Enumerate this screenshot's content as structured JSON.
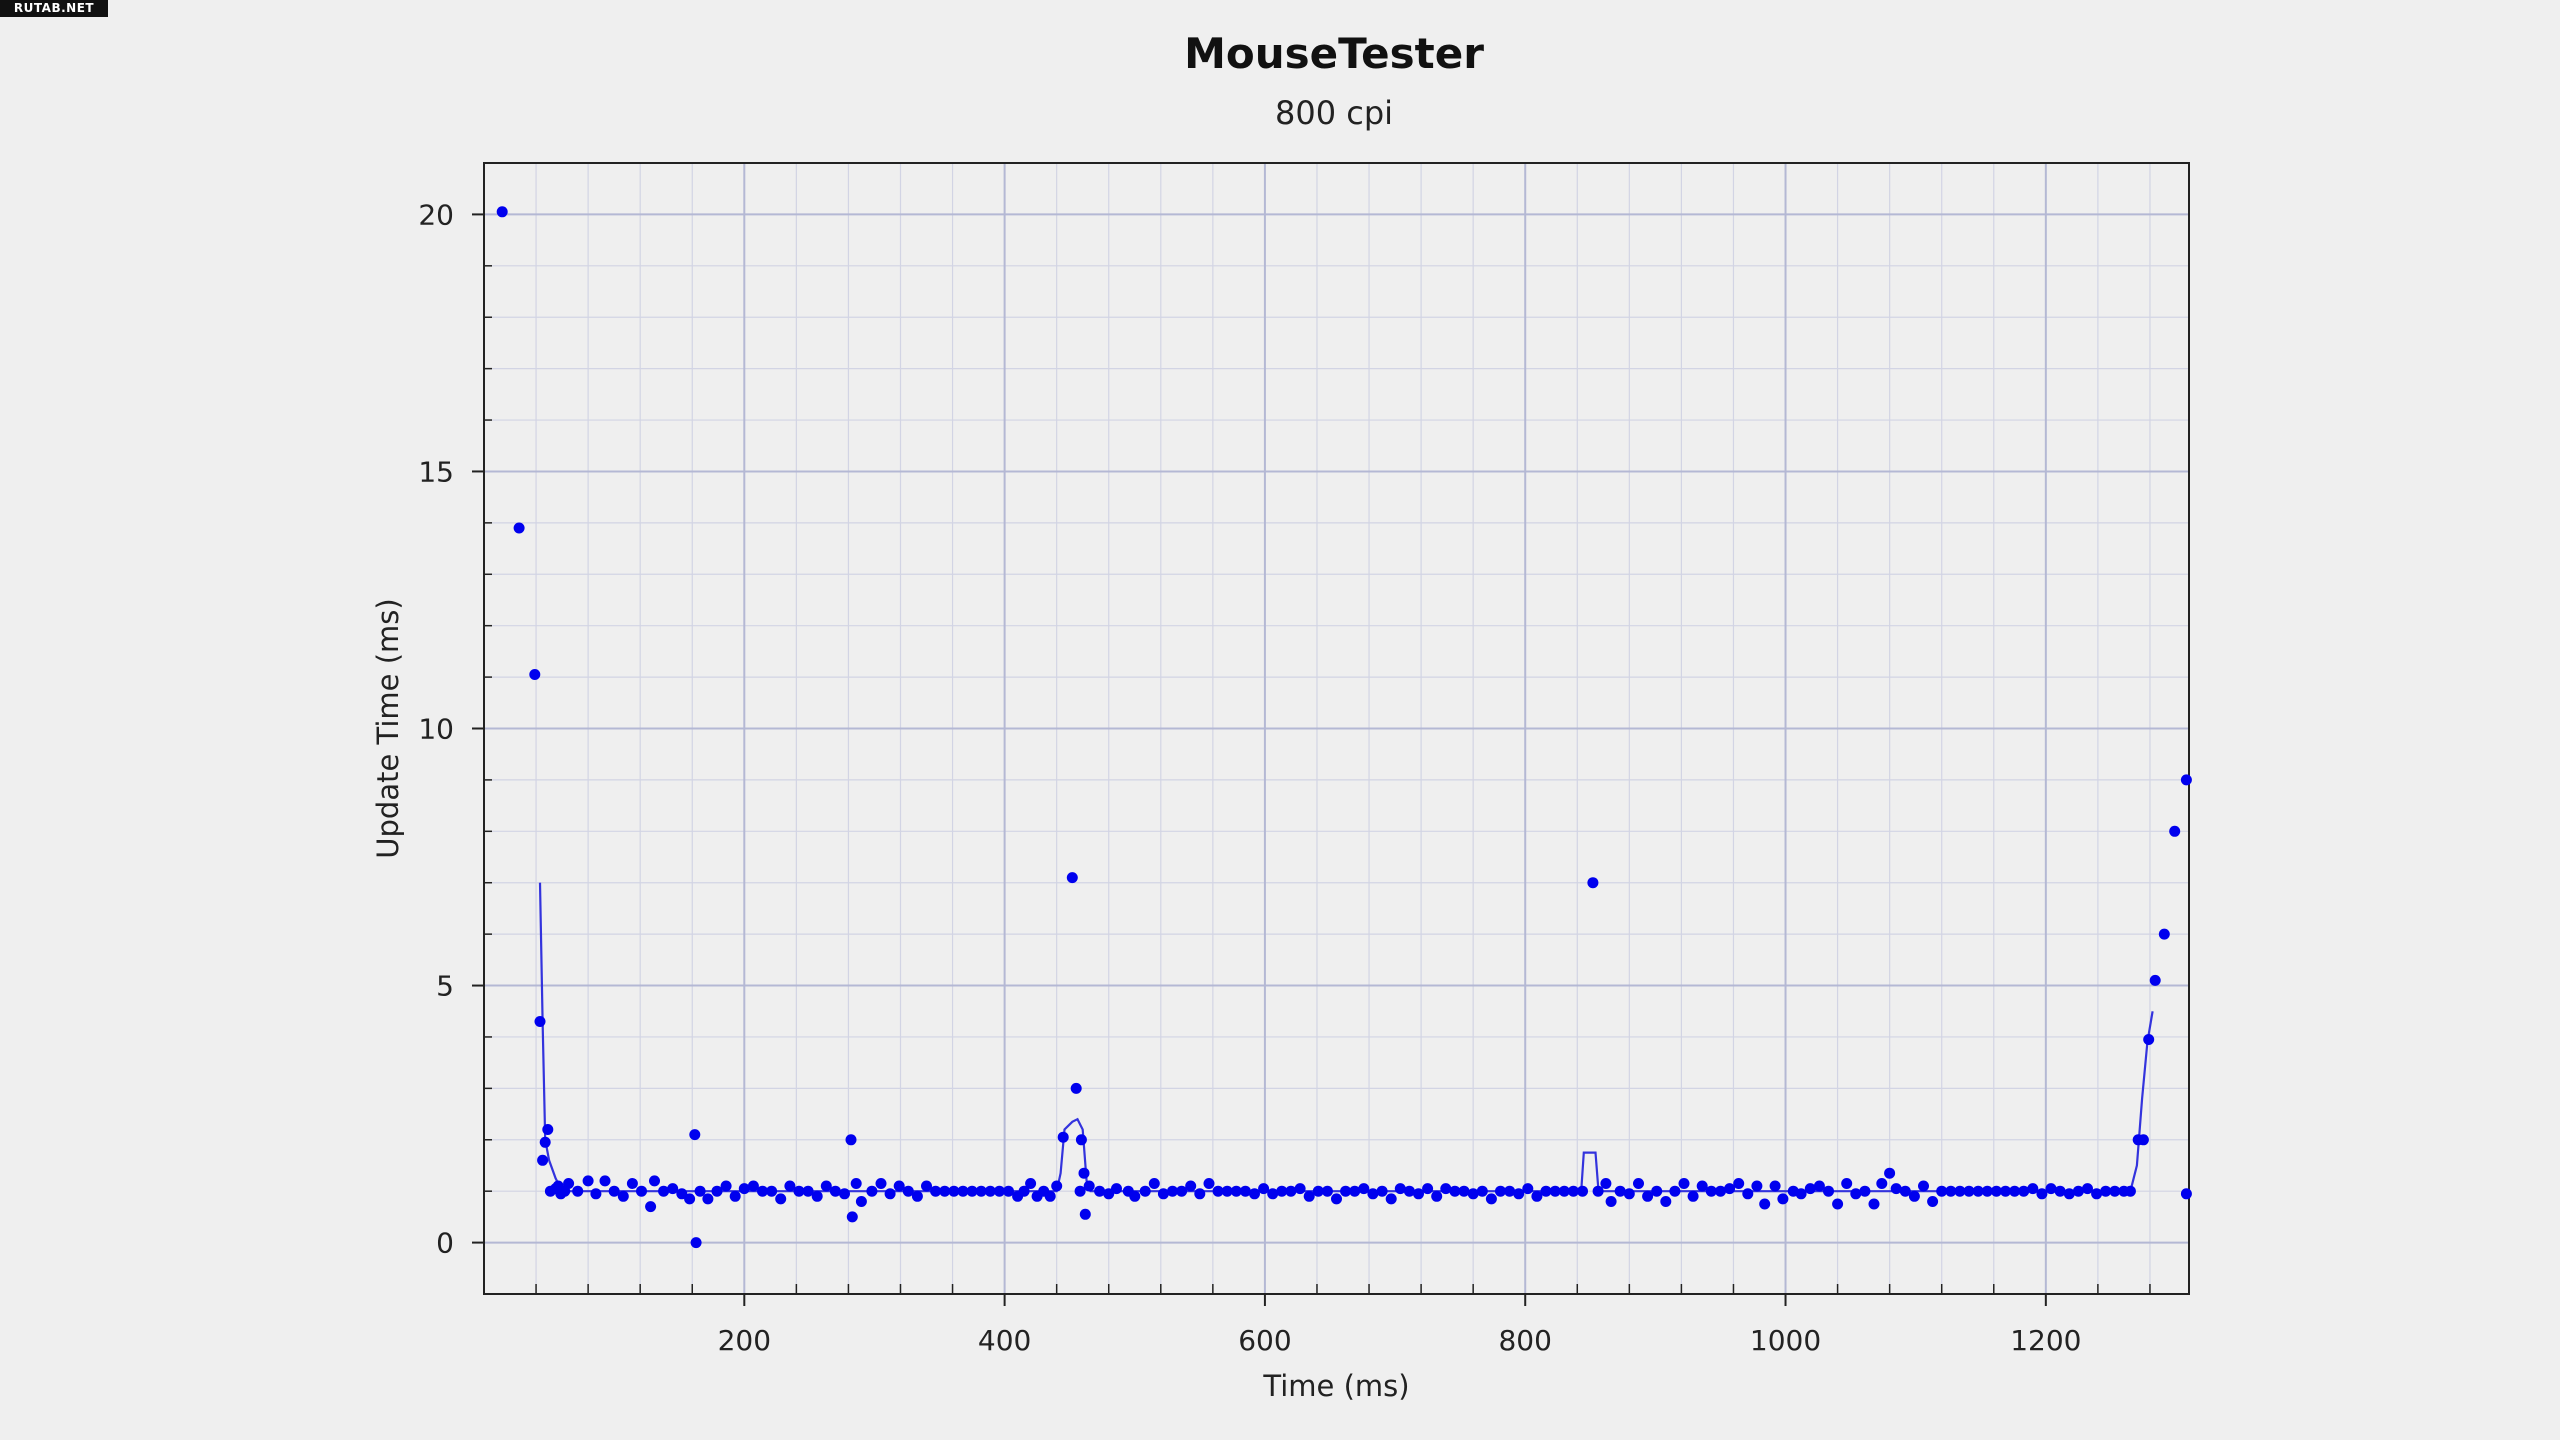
{
  "watermark": "RUTAB.NET",
  "chart_data": {
    "type": "scatter",
    "title": "MouseTester",
    "subtitle": "800 cpi",
    "xlabel": "Time (ms)",
    "ylabel": "Update Time (ms)",
    "xlim": [
      0,
      1310
    ],
    "ylim": [
      -1,
      21
    ],
    "xticks": [
      200,
      400,
      600,
      800,
      1000,
      1200
    ],
    "yticks": [
      0,
      5,
      10,
      15,
      20
    ],
    "grid": true,
    "colors": {
      "points": "#0000ee",
      "line": "#3333dd",
      "major_grid": "#b4b8d4",
      "minor_grid": "#d2d4e4",
      "frame": "#222222",
      "background": "#efefef"
    },
    "series": [
      {
        "type": "scatter",
        "points": [
          [
            14,
            20.05
          ],
          [
            27,
            13.9
          ],
          [
            39,
            11.05
          ],
          [
            43,
            4.3
          ],
          [
            45,
            1.6
          ],
          [
            47,
            1.95
          ],
          [
            49,
            2.2
          ],
          [
            51,
            1.0
          ],
          [
            55,
            1.05
          ],
          [
            57,
            1.1
          ],
          [
            59,
            0.95
          ],
          [
            62,
            1.0
          ],
          [
            65,
            1.15
          ],
          [
            72,
            1.0
          ],
          [
            80,
            1.2
          ],
          [
            86,
            0.95
          ],
          [
            93,
            1.2
          ],
          [
            100,
            1.0
          ],
          [
            107,
            0.9
          ],
          [
            114,
            1.15
          ],
          [
            121,
            1.0
          ],
          [
            128,
            0.7
          ],
          [
            131,
            1.2
          ],
          [
            138,
            1.0
          ],
          [
            145,
            1.05
          ],
          [
            152,
            0.95
          ],
          [
            158,
            0.85
          ],
          [
            162,
            2.1
          ],
          [
            163,
            0.0
          ],
          [
            166,
            1.0
          ],
          [
            172,
            0.85
          ],
          [
            179,
            1.0
          ],
          [
            186,
            1.1
          ],
          [
            193,
            0.9
          ],
          [
            200,
            1.05
          ],
          [
            207,
            1.1
          ],
          [
            214,
            1.0
          ],
          [
            221,
            1.0
          ],
          [
            228,
            0.85
          ],
          [
            235,
            1.1
          ],
          [
            242,
            1.0
          ],
          [
            249,
            1.0
          ],
          [
            256,
            0.9
          ],
          [
            263,
            1.1
          ],
          [
            270,
            1.0
          ],
          [
            277,
            0.95
          ],
          [
            282,
            2.0
          ],
          [
            283,
            0.5
          ],
          [
            286,
            1.15
          ],
          [
            290,
            0.8
          ],
          [
            298,
            1.0
          ],
          [
            305,
            1.15
          ],
          [
            312,
            0.95
          ],
          [
            319,
            1.1
          ],
          [
            326,
            1.0
          ],
          [
            333,
            0.9
          ],
          [
            340,
            1.1
          ],
          [
            347,
            1.0
          ],
          [
            354,
            1.0
          ],
          [
            361,
            1.0
          ],
          [
            368,
            1.0
          ],
          [
            375,
            1.0
          ],
          [
            382,
            1.0
          ],
          [
            389,
            1.0
          ],
          [
            396,
            1.0
          ],
          [
            403,
            1.0
          ],
          [
            410,
            0.9
          ],
          [
            415,
            1.0
          ],
          [
            420,
            1.15
          ],
          [
            425,
            0.9
          ],
          [
            430,
            1.0
          ],
          [
            435,
            0.9
          ],
          [
            440,
            1.1
          ],
          [
            445,
            2.05
          ],
          [
            452,
            7.1
          ],
          [
            455,
            3.0
          ],
          [
            458,
            1.0
          ],
          [
            459,
            2.0
          ],
          [
            461,
            1.35
          ],
          [
            462,
            0.55
          ],
          [
            465,
            1.1
          ],
          [
            473,
            1.0
          ],
          [
            480,
            0.95
          ],
          [
            486,
            1.05
          ],
          [
            495,
            1.0
          ],
          [
            500,
            0.9
          ],
          [
            508,
            1.0
          ],
          [
            515,
            1.15
          ],
          [
            522,
            0.95
          ],
          [
            529,
            1.0
          ],
          [
            536,
            1.0
          ],
          [
            543,
            1.1
          ],
          [
            550,
            0.95
          ],
          [
            557,
            1.15
          ],
          [
            564,
            1.0
          ],
          [
            571,
            1.0
          ],
          [
            578,
            1.0
          ],
          [
            585,
            1.0
          ],
          [
            592,
            0.95
          ],
          [
            599,
            1.05
          ],
          [
            606,
            0.95
          ],
          [
            613,
            1.0
          ],
          [
            620,
            1.0
          ],
          [
            627,
            1.05
          ],
          [
            634,
            0.9
          ],
          [
            641,
            1.0
          ],
          [
            648,
            1.0
          ],
          [
            655,
            0.85
          ],
          [
            662,
            1.0
          ],
          [
            669,
            1.0
          ],
          [
            676,
            1.05
          ],
          [
            683,
            0.95
          ],
          [
            690,
            1.0
          ],
          [
            697,
            0.85
          ],
          [
            704,
            1.05
          ],
          [
            711,
            1.0
          ],
          [
            718,
            0.95
          ],
          [
            725,
            1.05
          ],
          [
            732,
            0.9
          ],
          [
            739,
            1.05
          ],
          [
            746,
            1.0
          ],
          [
            753,
            1.0
          ],
          [
            760,
            0.95
          ],
          [
            767,
            1.0
          ],
          [
            774,
            0.85
          ],
          [
            781,
            1.0
          ],
          [
            788,
            1.0
          ],
          [
            795,
            0.95
          ],
          [
            802,
            1.05
          ],
          [
            809,
            0.9
          ],
          [
            816,
            1.0
          ],
          [
            823,
            1.0
          ],
          [
            830,
            1.0
          ],
          [
            837,
            1.0
          ],
          [
            844,
            1.0
          ],
          [
            852,
            7.0
          ],
          [
            856,
            1.0
          ],
          [
            862,
            1.15
          ],
          [
            866,
            0.8
          ],
          [
            873,
            1.0
          ],
          [
            880,
            0.95
          ],
          [
            887,
            1.15
          ],
          [
            894,
            0.9
          ],
          [
            901,
            1.0
          ],
          [
            908,
            0.8
          ],
          [
            915,
            1.0
          ],
          [
            922,
            1.15
          ],
          [
            929,
            0.9
          ],
          [
            936,
            1.1
          ],
          [
            943,
            1.0
          ],
          [
            950,
            1.0
          ],
          [
            957,
            1.05
          ],
          [
            964,
            1.15
          ],
          [
            971,
            0.95
          ],
          [
            978,
            1.1
          ],
          [
            984,
            0.75
          ],
          [
            992,
            1.1
          ],
          [
            998,
            0.85
          ],
          [
            1006,
            1.0
          ],
          [
            1012,
            0.95
          ],
          [
            1019,
            1.05
          ],
          [
            1026,
            1.1
          ],
          [
            1033,
            1.0
          ],
          [
            1040,
            0.75
          ],
          [
            1047,
            1.15
          ],
          [
            1054,
            0.95
          ],
          [
            1061,
            1.0
          ],
          [
            1068,
            0.75
          ],
          [
            1074,
            1.15
          ],
          [
            1080,
            1.35
          ],
          [
            1085,
            1.05
          ],
          [
            1092,
            1.0
          ],
          [
            1099,
            0.9
          ],
          [
            1106,
            1.1
          ],
          [
            1113,
            0.8
          ],
          [
            1120,
            1.0
          ],
          [
            1127,
            1.0
          ],
          [
            1134,
            1.0
          ],
          [
            1141,
            1.0
          ],
          [
            1148,
            1.0
          ],
          [
            1155,
            1.0
          ],
          [
            1162,
            1.0
          ],
          [
            1169,
            1.0
          ],
          [
            1176,
            1.0
          ],
          [
            1183,
            1.0
          ],
          [
            1190,
            1.05
          ],
          [
            1197,
            0.95
          ],
          [
            1204,
            1.05
          ],
          [
            1211,
            1.0
          ],
          [
            1218,
            0.95
          ],
          [
            1225,
            1.0
          ],
          [
            1232,
            1.05
          ],
          [
            1239,
            0.95
          ],
          [
            1246,
            1.0
          ],
          [
            1253,
            1.0
          ],
          [
            1260,
            1.0
          ],
          [
            1265,
            1.0
          ],
          [
            1271,
            2.0
          ],
          [
            1275,
            2.0
          ],
          [
            1279,
            3.95
          ],
          [
            1284,
            5.1
          ],
          [
            1291,
            6.0
          ],
          [
            1299,
            8.0
          ],
          [
            1308,
            9.0
          ],
          [
            1308,
            0.95
          ]
        ]
      },
      {
        "type": "line",
        "points": [
          [
            43,
            7.0
          ],
          [
            45,
            4.3
          ],
          [
            47,
            2.0
          ],
          [
            50,
            1.6
          ],
          [
            55,
            1.25
          ],
          [
            60,
            1.0
          ],
          [
            440,
            1.0
          ],
          [
            443,
            1.35
          ],
          [
            446,
            2.2
          ],
          [
            452,
            2.35
          ],
          [
            456,
            2.4
          ],
          [
            460,
            2.2
          ],
          [
            463,
            1.2
          ],
          [
            466,
            1.0
          ],
          [
            843,
            1.0
          ],
          [
            845,
            1.75
          ],
          [
            851,
            1.75
          ],
          [
            854,
            1.75
          ],
          [
            856,
            1.1
          ],
          [
            858,
            1.0
          ],
          [
            1262,
            1.0
          ],
          [
            1266,
            1.1
          ],
          [
            1270,
            1.5
          ],
          [
            1274,
            2.8
          ],
          [
            1278,
            3.9
          ],
          [
            1282,
            4.5
          ]
        ]
      }
    ]
  }
}
